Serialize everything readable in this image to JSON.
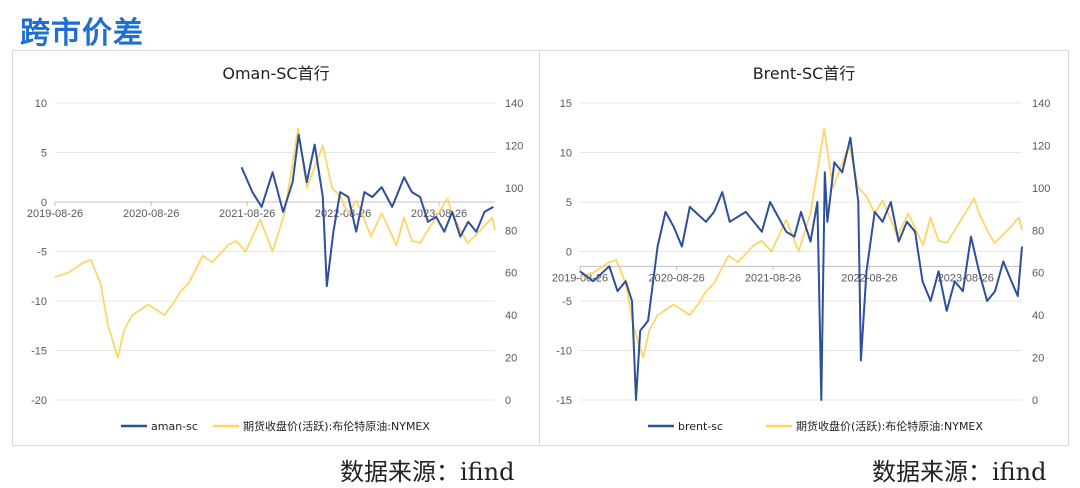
{
  "page": {
    "title": "跨市价差",
    "source_left": "数据来源：ifind",
    "source_right": "数据来源：ifind"
  },
  "colors": {
    "spread": "#2e4f9a",
    "crude": "#fdd666",
    "grid": "#e6e6e6"
  },
  "chart_data": [
    {
      "type": "line",
      "title": "Oman-SC首行",
      "left_axis": {
        "ylim": [
          -20,
          10
        ],
        "ticks": [
          10,
          5,
          0,
          -5,
          -10,
          -15,
          -20
        ]
      },
      "right_axis": {
        "ylim": [
          0,
          140
        ],
        "ticks": [
          140,
          120,
          100,
          80,
          60,
          40,
          20,
          0
        ]
      },
      "xlim": [
        "2019-08-26",
        "2024-03-26"
      ],
      "x_tick_labels": [
        "2019-08-26",
        "2020-08-26",
        "2021-08-26",
        "2022-08-26",
        "2023-08-26"
      ],
      "x_axis_at": 0,
      "grid": "horizontal",
      "legend": "bottom",
      "series": [
        {
          "name": "aman-sc",
          "axis": "left",
          "points": [
            [
              "2021-08-05",
              3.5
            ],
            [
              "2021-09-15",
              1.0
            ],
            [
              "2021-10-20",
              -0.5
            ],
            [
              "2021-12-01",
              3.0
            ],
            [
              "2022-01-10",
              -1.0
            ],
            [
              "2022-02-15",
              2.0
            ],
            [
              "2022-03-10",
              6.8
            ],
            [
              "2022-04-10",
              2.0
            ],
            [
              "2022-05-10",
              5.8
            ],
            [
              "2022-06-10",
              0.5
            ],
            [
              "2022-06-25",
              -8.5
            ],
            [
              "2022-07-20",
              -3.0
            ],
            [
              "2022-08-15",
              1.0
            ],
            [
              "2022-09-15",
              0.5
            ],
            [
              "2022-10-15",
              -3.0
            ],
            [
              "2022-11-15",
              1.0
            ],
            [
              "2022-12-15",
              0.5
            ],
            [
              "2023-01-20",
              1.5
            ],
            [
              "2023-03-01",
              -0.5
            ],
            [
              "2023-04-15",
              2.5
            ],
            [
              "2023-05-15",
              1.0
            ],
            [
              "2023-06-15",
              0.5
            ],
            [
              "2023-07-15",
              -2.0
            ],
            [
              "2023-08-15",
              -1.5
            ],
            [
              "2023-09-15",
              -3.0
            ],
            [
              "2023-10-15",
              -1.0
            ],
            [
              "2023-11-15",
              -3.5
            ],
            [
              "2023-12-15",
              -2.0
            ],
            [
              "2024-01-15",
              -3.0
            ],
            [
              "2024-02-15",
              -1.0
            ],
            [
              "2024-03-20",
              -0.5
            ]
          ]
        },
        {
          "name": "期货收盘价(活跃):布伦特原油:NYMEX",
          "axis": "right",
          "points": [
            [
              "2019-08-26",
              58
            ],
            [
              "2019-10-15",
              60
            ],
            [
              "2019-12-15",
              65
            ],
            [
              "2020-01-10",
              66
            ],
            [
              "2020-02-15",
              55
            ],
            [
              "2020-03-15",
              35
            ],
            [
              "2020-04-21",
              20
            ],
            [
              "2020-05-15",
              33
            ],
            [
              "2020-06-15",
              40
            ],
            [
              "2020-08-15",
              45
            ],
            [
              "2020-10-15",
              40
            ],
            [
              "2020-11-15",
              45
            ],
            [
              "2020-12-15",
              51
            ],
            [
              "2021-01-15",
              55
            ],
            [
              "2021-03-10",
              68
            ],
            [
              "2021-04-15",
              65
            ],
            [
              "2021-06-15",
              73
            ],
            [
              "2021-07-15",
              75
            ],
            [
              "2021-08-20",
              70
            ],
            [
              "2021-10-15",
              85
            ],
            [
              "2021-12-01",
              70
            ],
            [
              "2022-01-15",
              88
            ],
            [
              "2022-03-08",
              128
            ],
            [
              "2022-04-10",
              100
            ],
            [
              "2022-06-10",
              120
            ],
            [
              "2022-07-15",
              100
            ],
            [
              "2022-08-15",
              96
            ],
            [
              "2022-09-15",
              88
            ],
            [
              "2022-10-15",
              94
            ],
            [
              "2022-11-15",
              85
            ],
            [
              "2022-12-10",
              77
            ],
            [
              "2023-01-20",
              88
            ],
            [
              "2023-03-17",
              73
            ],
            [
              "2023-04-15",
              86
            ],
            [
              "2023-05-15",
              75
            ],
            [
              "2023-06-15",
              74
            ],
            [
              "2023-07-15",
              80
            ],
            [
              "2023-09-27",
              95
            ],
            [
              "2023-10-15",
              88
            ],
            [
              "2023-11-15",
              80
            ],
            [
              "2023-12-13",
              74
            ],
            [
              "2024-01-15",
              78
            ],
            [
              "2024-02-15",
              82
            ],
            [
              "2024-03-15",
              86
            ],
            [
              "2024-03-26",
              80
            ]
          ]
        }
      ]
    },
    {
      "type": "line",
      "title": "Brent-SC首行",
      "left_axis": {
        "ylim": [
          -15,
          15
        ],
        "ticks": [
          15,
          10,
          5,
          0,
          -5,
          -10,
          -15
        ]
      },
      "right_axis": {
        "ylim": [
          0,
          140
        ],
        "ticks": [
          140,
          120,
          100,
          80,
          60,
          40,
          20,
          0
        ]
      },
      "xlim": [
        "2019-08-26",
        "2024-03-26"
      ],
      "x_tick_labels": [
        "2019-08-26",
        "2020-08-26",
        "2021-08-26",
        "2022-08-26",
        "2023-08-26"
      ],
      "x_axis_at": -1.5,
      "grid": "horizontal",
      "legend": "bottom",
      "series": [
        {
          "name": "brent-sc",
          "axis": "left",
          "points": [
            [
              "2019-08-26",
              -2.0
            ],
            [
              "2019-10-15",
              -3.0
            ],
            [
              "2019-12-15",
              -1.5
            ],
            [
              "2020-01-15",
              -4.0
            ],
            [
              "2020-02-15",
              -3.0
            ],
            [
              "2020-03-10",
              -5.0
            ],
            [
              "2020-03-25",
              -15.0
            ],
            [
              "2020-04-10",
              -8.0
            ],
            [
              "2020-05-10",
              -7.0
            ],
            [
              "2020-06-15",
              0.5
            ],
            [
              "2020-07-15",
              4.0
            ],
            [
              "2020-08-15",
              2.5
            ],
            [
              "2020-09-15",
              0.5
            ],
            [
              "2020-10-15",
              4.5
            ],
            [
              "2020-12-15",
              3.0
            ],
            [
              "2021-01-15",
              4.0
            ],
            [
              "2021-02-15",
              6.0
            ],
            [
              "2021-03-15",
              3.0
            ],
            [
              "2021-05-15",
              4.0
            ],
            [
              "2021-07-15",
              2.0
            ],
            [
              "2021-08-15",
              5.0
            ],
            [
              "2021-10-15",
              2.0
            ],
            [
              "2021-11-15",
              1.5
            ],
            [
              "2021-12-10",
              4.0
            ],
            [
              "2022-01-15",
              1.0
            ],
            [
              "2022-02-10",
              5.0
            ],
            [
              "2022-02-25",
              -15.0
            ],
            [
              "2022-03-10",
              8.0
            ],
            [
              "2022-03-20",
              3.0
            ],
            [
              "2022-04-15",
              9.0
            ],
            [
              "2022-05-15",
              8.0
            ],
            [
              "2022-06-15",
              11.5
            ],
            [
              "2022-07-15",
              5.0
            ],
            [
              "2022-07-25",
              -11.0
            ],
            [
              "2022-08-15",
              -2.0
            ],
            [
              "2022-09-15",
              4.0
            ],
            [
              "2022-10-15",
              3.0
            ],
            [
              "2022-11-15",
              5.0
            ],
            [
              "2022-12-15",
              1.0
            ],
            [
              "2023-01-15",
              3.0
            ],
            [
              "2023-02-15",
              2.0
            ],
            [
              "2023-03-15",
              -3.0
            ],
            [
              "2023-04-15",
              -5.0
            ],
            [
              "2023-05-15",
              -2.0
            ],
            [
              "2023-06-15",
              -6.0
            ],
            [
              "2023-07-15",
              -3.0
            ],
            [
              "2023-08-15",
              -4.0
            ],
            [
              "2023-09-15",
              1.5
            ],
            [
              "2023-10-15",
              -2.0
            ],
            [
              "2023-11-15",
              -5.0
            ],
            [
              "2023-12-15",
              -4.0
            ],
            [
              "2024-01-15",
              -1.0
            ],
            [
              "2024-02-15",
              -3.0
            ],
            [
              "2024-03-10",
              -4.5
            ],
            [
              "2024-03-26",
              0.5
            ]
          ]
        },
        {
          "name": "期货收盘价(活跃):布伦特原油:NYMEX",
          "axis": "right",
          "points": [
            [
              "2019-08-26",
              58
            ],
            [
              "2019-10-15",
              60
            ],
            [
              "2019-12-15",
              65
            ],
            [
              "2020-01-10",
              66
            ],
            [
              "2020-02-15",
              55
            ],
            [
              "2020-03-15",
              35
            ],
            [
              "2020-04-21",
              20
            ],
            [
              "2020-05-15",
              33
            ],
            [
              "2020-06-15",
              40
            ],
            [
              "2020-08-15",
              45
            ],
            [
              "2020-10-15",
              40
            ],
            [
              "2020-11-15",
              45
            ],
            [
              "2020-12-15",
              51
            ],
            [
              "2021-01-15",
              55
            ],
            [
              "2021-03-10",
              68
            ],
            [
              "2021-04-15",
              65
            ],
            [
              "2021-06-15",
              73
            ],
            [
              "2021-07-15",
              75
            ],
            [
              "2021-08-20",
              70
            ],
            [
              "2021-10-15",
              85
            ],
            [
              "2021-12-01",
              70
            ],
            [
              "2022-01-15",
              88
            ],
            [
              "2022-03-08",
              128
            ],
            [
              "2022-04-10",
              100
            ],
            [
              "2022-06-10",
              120
            ],
            [
              "2022-07-15",
              100
            ],
            [
              "2022-08-15",
              96
            ],
            [
              "2022-09-15",
              88
            ],
            [
              "2022-10-15",
              94
            ],
            [
              "2022-11-15",
              85
            ],
            [
              "2022-12-10",
              77
            ],
            [
              "2023-01-20",
              88
            ],
            [
              "2023-03-17",
              73
            ],
            [
              "2023-04-15",
              86
            ],
            [
              "2023-05-15",
              75
            ],
            [
              "2023-06-15",
              74
            ],
            [
              "2023-07-15",
              80
            ],
            [
              "2023-09-27",
              95
            ],
            [
              "2023-10-15",
              88
            ],
            [
              "2023-11-15",
              80
            ],
            [
              "2023-12-13",
              74
            ],
            [
              "2024-01-15",
              78
            ],
            [
              "2024-02-15",
              82
            ],
            [
              "2024-03-15",
              86
            ],
            [
              "2024-03-26",
              80
            ]
          ]
        }
      ]
    }
  ]
}
